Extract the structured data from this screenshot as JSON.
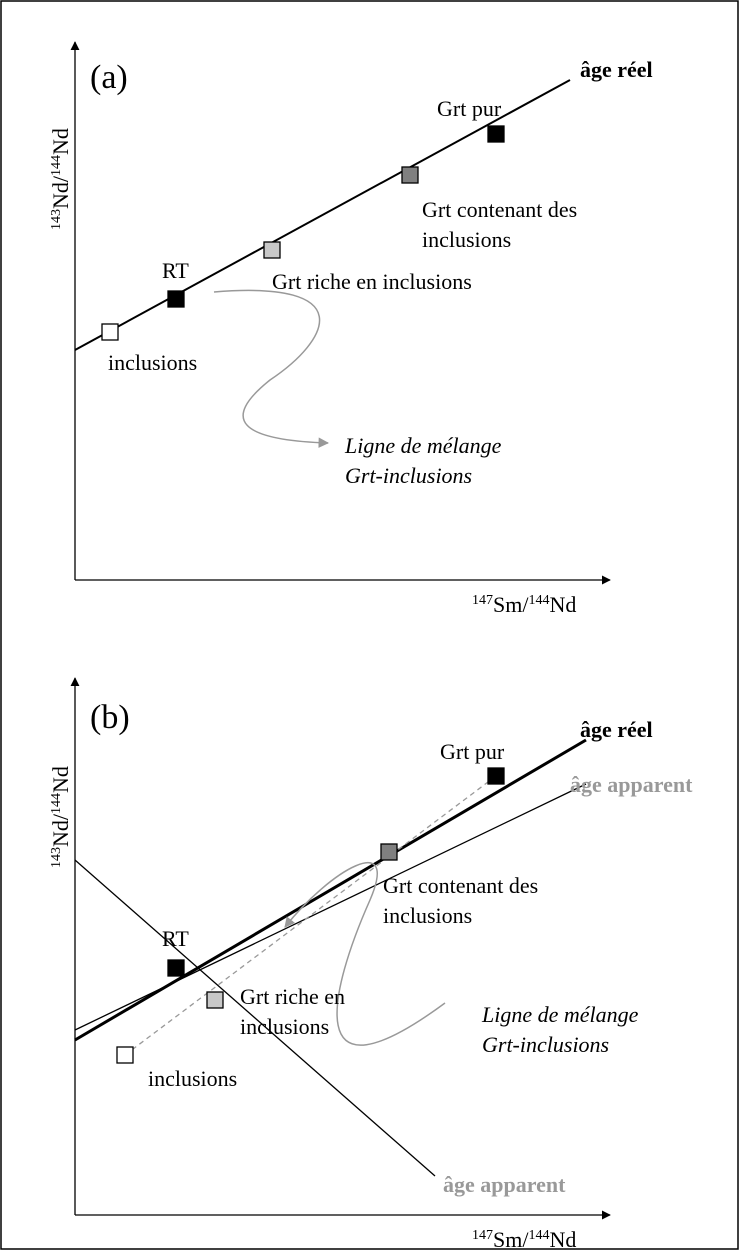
{
  "panel_a": {
    "label": "(a)",
    "y_axis_label": [
      "143",
      "Nd/",
      "144",
      "Nd"
    ],
    "x_axis_label": [
      "147",
      "Sm/",
      "144",
      "Nd"
    ],
    "age_reel": "âge réel",
    "grt_pur": "Grt pur",
    "grt_contenant": [
      "Grt contenant des",
      "inclusions"
    ],
    "grt_riche": "Grt riche en inclusions",
    "rt": "RT",
    "inclusions": "inclusions",
    "ligne_melange": [
      "Ligne de mélange",
      "Grt-inclusions"
    ]
  },
  "panel_b": {
    "label": "(b)",
    "y_axis_label": [
      "143",
      "Nd/",
      "144",
      "Nd"
    ],
    "x_axis_label": [
      "147",
      "Sm/",
      "144",
      "Nd"
    ],
    "age_reel": "âge réel",
    "grt_pur": "Grt pur",
    "age_apparent_upper": "âge apparent",
    "grt_contenant": [
      "Grt contenant des",
      "inclusions"
    ],
    "rt": "RT",
    "grt_riche": [
      "Grt riche en",
      "inclusions"
    ],
    "ligne_melange": [
      "Ligne de mélange",
      "Grt-inclusions"
    ],
    "inclusions": "inclusions",
    "age_apparent_lower": "âge apparent"
  }
}
